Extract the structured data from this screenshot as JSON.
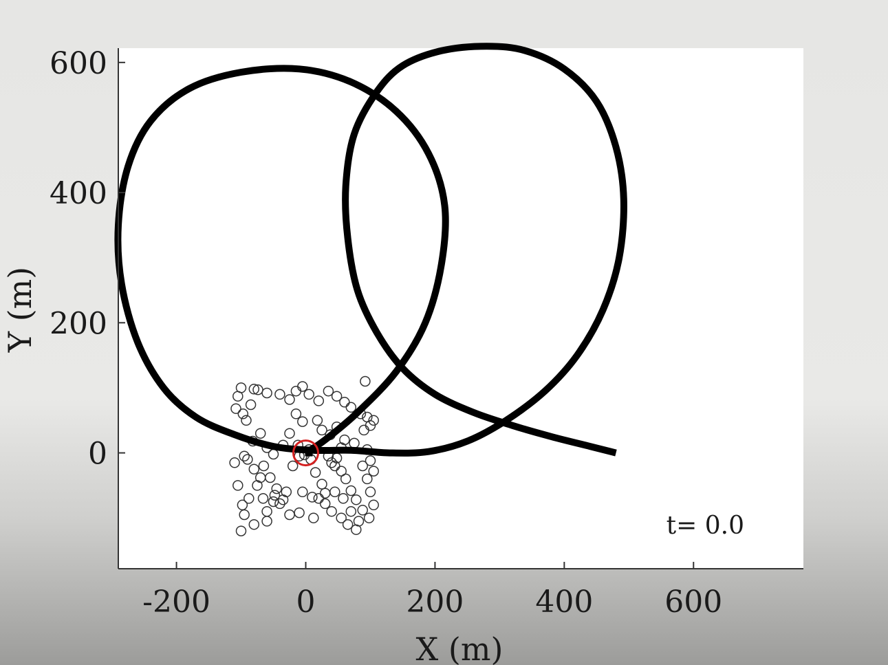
{
  "chart_data": {
    "type": "scatter",
    "xlabel": "X (m)",
    "ylabel": "Y (m)",
    "xlim": [
      -290,
      770
    ],
    "ylim": [
      -178,
      622
    ],
    "xticks": [
      -200,
      0,
      200,
      400,
      600
    ],
    "yticks": [
      0,
      200,
      400,
      600
    ],
    "xtick_labels": [
      "-200",
      "0",
      "200",
      "400",
      "600"
    ],
    "ytick_labels": [
      "0",
      "200",
      "400",
      "600"
    ],
    "grid": false,
    "annotation": "t= 0.0",
    "trajectory_color": "#000000",
    "agent_color": "#d42020",
    "agent_position": [
      0,
      0
    ],
    "series": [
      {
        "kind": "line",
        "points": [
          [
            480,
            0
          ],
          [
            440,
            10
          ],
          [
            380,
            25
          ],
          [
            320,
            42
          ],
          [
            260,
            62
          ],
          [
            200,
            90
          ],
          [
            150,
            130
          ],
          [
            110,
            185
          ],
          [
            80,
            250
          ],
          [
            65,
            330
          ],
          [
            62,
            410
          ],
          [
            75,
            490
          ],
          [
            110,
            555
          ],
          [
            150,
            595
          ],
          [
            210,
            618
          ],
          [
            280,
            625
          ],
          [
            340,
            618
          ],
          [
            400,
            590
          ],
          [
            450,
            540
          ],
          [
            480,
            470
          ],
          [
            492,
            390
          ],
          [
            485,
            300
          ],
          [
            460,
            220
          ],
          [
            420,
            150
          ],
          [
            370,
            95
          ],
          [
            310,
            50
          ],
          [
            250,
            18
          ],
          [
            190,
            2
          ],
          [
            130,
            0
          ],
          [
            70,
            4
          ],
          [
            10,
            4
          ],
          [
            -50,
            10
          ],
          [
            -110,
            28
          ],
          [
            -170,
            55
          ],
          [
            -220,
            100
          ],
          [
            -260,
            170
          ],
          [
            -285,
            260
          ],
          [
            -290,
            350
          ],
          [
            -275,
            440
          ],
          [
            -240,
            510
          ],
          [
            -180,
            560
          ],
          [
            -100,
            585
          ],
          [
            -10,
            590
          ],
          [
            70,
            570
          ],
          [
            140,
            525
          ],
          [
            190,
            460
          ],
          [
            215,
            380
          ],
          [
            210,
            290
          ],
          [
            185,
            200
          ],
          [
            140,
            125
          ],
          [
            80,
            62
          ],
          [
            30,
            20
          ],
          [
            0,
            0
          ]
        ]
      },
      {
        "kind": "points",
        "points": [
          [
            -100,
            100
          ],
          [
            -80,
            98
          ],
          [
            -105,
            87
          ],
          [
            -74,
            97
          ],
          [
            -108,
            68
          ],
          [
            -97,
            60
          ],
          [
            -92,
            50
          ],
          [
            -85,
            74
          ],
          [
            -60,
            92
          ],
          [
            -40,
            90
          ],
          [
            -25,
            82
          ],
          [
            -15,
            95
          ],
          [
            -5,
            102
          ],
          [
            5,
            90
          ],
          [
            20,
            80
          ],
          [
            35,
            95
          ],
          [
            48,
            87
          ],
          [
            60,
            78
          ],
          [
            70,
            70
          ],
          [
            92,
            110
          ],
          [
            85,
            60
          ],
          [
            95,
            55
          ],
          [
            105,
            50
          ],
          [
            -70,
            30
          ],
          [
            -82,
            18
          ],
          [
            -60,
            8
          ],
          [
            -50,
            -2
          ],
          [
            -35,
            12
          ],
          [
            -25,
            30
          ],
          [
            -15,
            60
          ],
          [
            -5,
            48
          ],
          [
            18,
            50
          ],
          [
            25,
            35
          ],
          [
            38,
            28
          ],
          [
            48,
            40
          ],
          [
            60,
            20
          ],
          [
            75,
            15
          ],
          [
            90,
            35
          ],
          [
            100,
            42
          ],
          [
            -90,
            -10
          ],
          [
            -80,
            -25
          ],
          [
            -70,
            -38
          ],
          [
            -65,
            -20
          ],
          [
            -55,
            -38
          ],
          [
            -45,
            -55
          ],
          [
            -35,
            -72
          ],
          [
            -50,
            -75
          ],
          [
            -60,
            -90
          ],
          [
            -75,
            -50
          ],
          [
            -98,
            -80
          ],
          [
            -105,
            -50
          ],
          [
            -110,
            -15
          ],
          [
            -95,
            -5
          ],
          [
            15,
            -30
          ],
          [
            25,
            -48
          ],
          [
            45,
            -20
          ],
          [
            55,
            -28
          ],
          [
            62,
            -40
          ],
          [
            70,
            -58
          ],
          [
            78,
            -72
          ],
          [
            88,
            -88
          ],
          [
            98,
            -100
          ],
          [
            105,
            -80
          ],
          [
            100,
            -60
          ],
          [
            95,
            -40
          ],
          [
            105,
            -28
          ],
          [
            100,
            -12
          ],
          [
            95,
            5
          ],
          [
            10,
            -68
          ],
          [
            20,
            -70
          ],
          [
            30,
            -78
          ],
          [
            40,
            -90
          ],
          [
            55,
            -100
          ],
          [
            65,
            -110
          ],
          [
            78,
            -118
          ],
          [
            -5,
            -60
          ],
          [
            -10,
            -92
          ],
          [
            -25,
            -95
          ],
          [
            -40,
            -78
          ],
          [
            -60,
            -105
          ],
          [
            -80,
            -110
          ],
          [
            -100,
            -120
          ],
          [
            35,
            -5
          ],
          [
            48,
            -8
          ],
          [
            40,
            -15
          ],
          [
            55,
            8
          ],
          [
            -20,
            -20
          ],
          [
            -10,
            -5
          ],
          [
            5,
            5
          ],
          [
            -2,
            -3
          ],
          [
            8,
            -10
          ],
          [
            -12,
            12
          ],
          [
            45,
            -60
          ],
          [
            30,
            -62
          ],
          [
            58,
            -70
          ],
          [
            70,
            -90
          ],
          [
            82,
            -105
          ],
          [
            12,
            -100
          ],
          [
            -30,
            -60
          ],
          [
            -48,
            -65
          ],
          [
            -66,
            -70
          ],
          [
            -88,
            -70
          ],
          [
            -95,
            -95
          ],
          [
            88,
            -20
          ]
        ]
      }
    ]
  }
}
